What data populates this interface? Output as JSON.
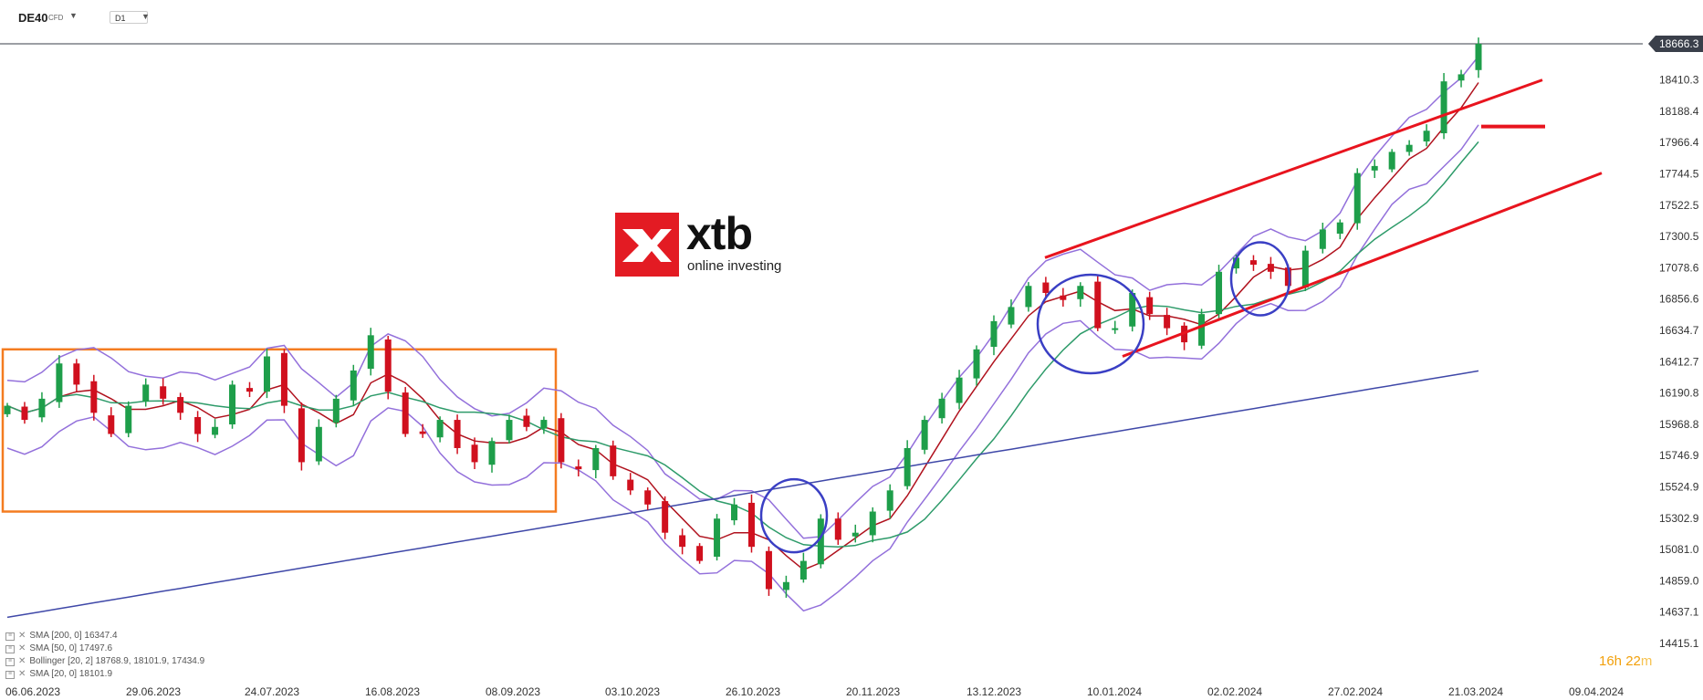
{
  "toolbar": {
    "symbol": "DE40",
    "badge": "CFD",
    "timeframe": "D1"
  },
  "logo": {
    "name": "xtb",
    "tagline": "online investing"
  },
  "price_axis": {
    "current_price": "18666.3",
    "current_price_value": 18666.3
  },
  "legend": [
    {
      "label": "SMA",
      "params": "[200, 0]",
      "values": "16347.4"
    },
    {
      "label": "SMA",
      "params": "[50, 0]",
      "values": "17497.6"
    },
    {
      "label": "Bollinger",
      "params": "[20, 2]",
      "values": "18768.9,  18101.9,  17434.9"
    },
    {
      "label": "SMA",
      "params": "[20, 0]",
      "values": "18101.9"
    }
  ],
  "timer": {
    "hours": "16h",
    "minutes": "22",
    "unit": "m"
  },
  "colors": {
    "bull": "#1e9e4a",
    "bear": "#d0101e",
    "sma20": "#b0121e",
    "sma50": "#2e9b6a",
    "sma200": "#3f48a8",
    "bollinger": "#9370db",
    "trend": "#e8141e",
    "zone": "#f47c20",
    "circle": "#3a3fc4"
  },
  "chart_data": {
    "type": "candlestick",
    "instrument": "DE40",
    "timeframe": "D1",
    "y_ticks": [
      18410.3,
      18188.4,
      17966.4,
      17744.5,
      17522.5,
      17300.5,
      17078.6,
      16856.6,
      16634.7,
      16412.7,
      16190.8,
      15968.8,
      15746.9,
      15524.9,
      15302.9,
      15081.0,
      14859.0,
      14637.1,
      14415.1
    ],
    "y_tick_labels": [
      "18410.3",
      "18188.4",
      "17966.4",
      "17744.5",
      "17522.5",
      "17300.5",
      "17078.6",
      "16856.6",
      "16634.7",
      "16412.7",
      "16190.8",
      "15968.8",
      "15746.9",
      "15524.9",
      "15302.9",
      "15081.0",
      "14859.0",
      "14637.1",
      "14415.1"
    ],
    "ylim": [
      14415.1,
      18666.3
    ],
    "x_labels": [
      "06.06.2023",
      "29.06.2023",
      "24.07.2023",
      "16.08.2023",
      "08.09.2023",
      "03.10.2023",
      "26.10.2023",
      "20.11.2023",
      "13.12.2023",
      "10.01.2024",
      "02.02.2024",
      "27.02.2024",
      "21.03.2024",
      "09.04.2024"
    ],
    "close_path": [
      16100,
      16000,
      16150,
      16400,
      16250,
      16050,
      15900,
      16100,
      16250,
      16150,
      16050,
      15900,
      15950,
      16250,
      16200,
      16450,
      16100,
      15700,
      15950,
      16150,
      16350,
      16600,
      16200,
      15900,
      15900,
      16000,
      15800,
      15700,
      15850,
      16000,
      15950,
      16000,
      15700,
      15650,
      15800,
      15600,
      15500,
      15400,
      15200,
      15100,
      15000,
      15300,
      15400,
      15100,
      14800,
      14850,
      15000,
      15300,
      15150,
      15200,
      15350,
      15500,
      15800,
      16000,
      16150,
      16300,
      16500,
      16700,
      16800,
      16950,
      16900,
      16850,
      16950,
      16650,
      16650,
      16900,
      16750,
      16650,
      16550,
      16750,
      17050,
      17150,
      17100,
      17050,
      16950,
      17200,
      17350,
      17400,
      17750,
      17800,
      17900,
      17950,
      18050,
      18400,
      18450,
      18666
    ],
    "indicators": {
      "sma20": {
        "params": "[20, 0]",
        "last": 18101.9
      },
      "sma50": {
        "params": "[50, 0]",
        "last": 17497.6
      },
      "sma200": {
        "params": "[200, 0]",
        "last": 16347.4
      },
      "bollinger": {
        "params": "[20, 2]",
        "upper": 18768.9,
        "middle": 18101.9,
        "lower": 17434.9
      }
    }
  }
}
